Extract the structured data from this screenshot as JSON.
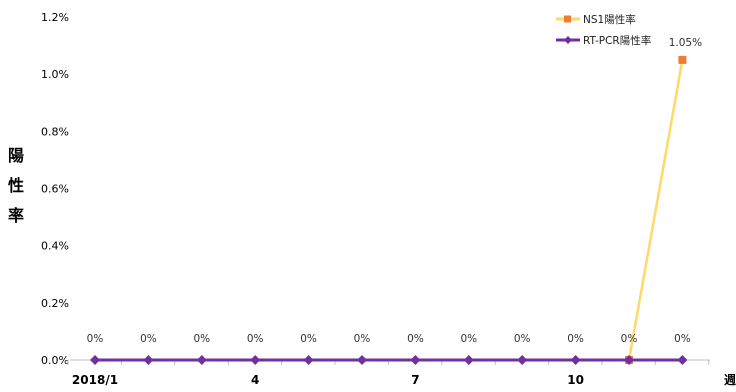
{
  "chart_data": {
    "type": "line",
    "ylabel": "陽性率",
    "xlabel": "週",
    "x_tick_labels": [
      "2018/1",
      "4",
      "7",
      "10"
    ],
    "x": [
      1,
      2,
      3,
      4,
      5,
      6,
      7,
      8,
      9,
      10,
      11,
      12
    ],
    "y_ticks": [
      "0.0%",
      "0.2%",
      "0.4%",
      "0.6%",
      "0.8%",
      "1.0%",
      "1.2%"
    ],
    "ylim": [
      0,
      1.2
    ],
    "grid": false,
    "legend_position": "top-right",
    "series": [
      {
        "name": "NS1陽性率",
        "color": "#FFD966",
        "marker_color": "#ED7D31",
        "marker": "square",
        "x": [
          11,
          12
        ],
        "values": [
          0,
          1.05
        ],
        "data_labels": [
          "",
          "1.05%"
        ]
      },
      {
        "name": "RT-PCR陽性率",
        "color": "#7030A0",
        "marker_color": "#7030A0",
        "marker": "diamond",
        "x": [
          1,
          2,
          3,
          4,
          5,
          6,
          7,
          8,
          9,
          10,
          11,
          12
        ],
        "values": [
          0,
          0,
          0,
          0,
          0,
          0,
          0,
          0,
          0,
          0,
          0,
          0
        ],
        "data_labels": [
          "0%",
          "0%",
          "0%",
          "0%",
          "0%",
          "0%",
          "0%",
          "0%",
          "0%",
          "0%",
          "0%",
          "0%"
        ]
      }
    ]
  }
}
